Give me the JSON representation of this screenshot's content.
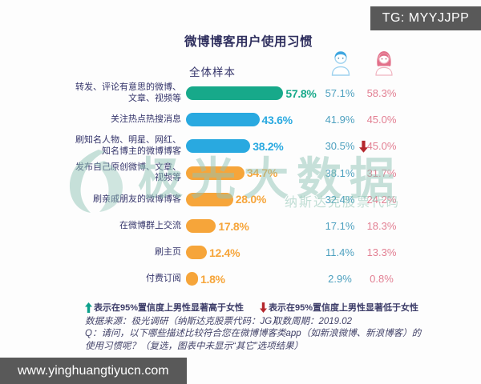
{
  "badge": {
    "text": "TG: MYYJJPP"
  },
  "title": "微博博客用户使用习惯",
  "sample_label": "全体样本",
  "colors": {
    "bar_green": "#17a98a",
    "bar_blue": "#29a9e0",
    "bar_orange": "#f6a53a",
    "male_value": "#4da0bf",
    "female_value": "#e27f92",
    "navy_text": "#35356b",
    "arrow_up_green": "#0ca08b",
    "arrow_down_red": "#b5272d",
    "watermark_teal": "#8fc4b5",
    "badge_bg": "#595959"
  },
  "chart_data": {
    "type": "bar",
    "orientation": "horizontal",
    "title": "微博博客用户使用习惯",
    "subtitle": "全体样本",
    "unit": "%",
    "xlim": [
      0,
      100
    ],
    "categories": [
      "转发、评论有意思的微博、文章、视频等",
      "关注热点热搜消息",
      "刷知名人物、明星、网红、知名博主的微博博客",
      "发布自己原创微博、文章、视频等",
      "刷亲戚朋友的微博博客",
      "在微博群上交流",
      "刷主页",
      "付费订阅"
    ],
    "series": [
      {
        "name": "全体样本",
        "values": [
          57.8,
          43.6,
          38.2,
          34.7,
          28.0,
          17.8,
          12.4,
          1.8
        ]
      },
      {
        "name": "男性",
        "values": [
          57.1,
          41.9,
          30.5,
          38.1,
          32.4,
          17.1,
          11.4,
          2.9
        ]
      },
      {
        "name": "女性",
        "values": [
          58.3,
          45.0,
          45.0,
          31.7,
          24.2,
          18.3,
          13.3,
          0.8
        ]
      }
    ],
    "significance_markers": [
      {
        "category_index": 2,
        "symbol": "red-down-arrow",
        "meaning": "男性显著低于女性"
      }
    ],
    "rows": [
      {
        "label_lines": "转发、评论有意思的微博、\n文章、视频等",
        "value": 57.8,
        "total": "57.8%",
        "male": "57.1%",
        "female": "58.3%",
        "bar_color": "#17a98a",
        "marker": null
      },
      {
        "label_lines": "关注热点热搜消息",
        "value": 43.6,
        "total": "43.6%",
        "male": "41.9%",
        "female": "45.0%",
        "bar_color": "#29a9e0",
        "marker": null
      },
      {
        "label_lines": "刷知名人物、明星、网红、\n知名博主的微博博客",
        "value": 38.2,
        "total": "38.2%",
        "male": "30.5%",
        "female": "45.0%",
        "bar_color": "#29a9e0",
        "marker": "down"
      },
      {
        "label_lines": "发布自己原创微博、文章、\n视频等",
        "value": 34.7,
        "total": "34.7%",
        "male": "38.1%",
        "female": "31.7%",
        "bar_color": "#f6a53a",
        "marker": null
      },
      {
        "label_lines": "刷亲戚朋友的微博博客",
        "value": 28.0,
        "total": "28.0%",
        "male": "32.4%",
        "female": "24.2%",
        "bar_color": "#f6a53a",
        "marker": null
      },
      {
        "label_lines": "在微博群上交流",
        "value": 17.8,
        "total": "17.8%",
        "male": "17.1%",
        "female": "18.3%",
        "bar_color": "#f6a53a",
        "marker": null
      },
      {
        "label_lines": "刷主页",
        "value": 12.4,
        "total": "12.4%",
        "male": "11.4%",
        "female": "13.3%",
        "bar_color": "#f6a53a",
        "marker": null
      },
      {
        "label_lines": "付费订阅",
        "value": 1.8,
        "total": "1.8%",
        "male": "2.9%",
        "female": "0.8%",
        "bar_color": "#f6a53a",
        "marker": null
      }
    ]
  },
  "legend": {
    "up_text": "表示在95%置信度上男性显著高于女性",
    "down_text": "表示在95%置信度上男性显著低于女性"
  },
  "source": {
    "left": "数据来源：极光调研（纳斯达克股票代码：JG）",
    "right": "取数周期：2019.02"
  },
  "question": "Q：请问，以下哪些描述比较符合您在微博博客类app（如新浪微博、新浪博客）的使用习惯呢？（复选，图表中未显示“其它”选项结果）",
  "watermark": {
    "text": "极光大数据",
    "subtext": "纳斯达克股票代码"
  },
  "footer": {
    "url": "www.yinghuangtiyucn.com"
  }
}
